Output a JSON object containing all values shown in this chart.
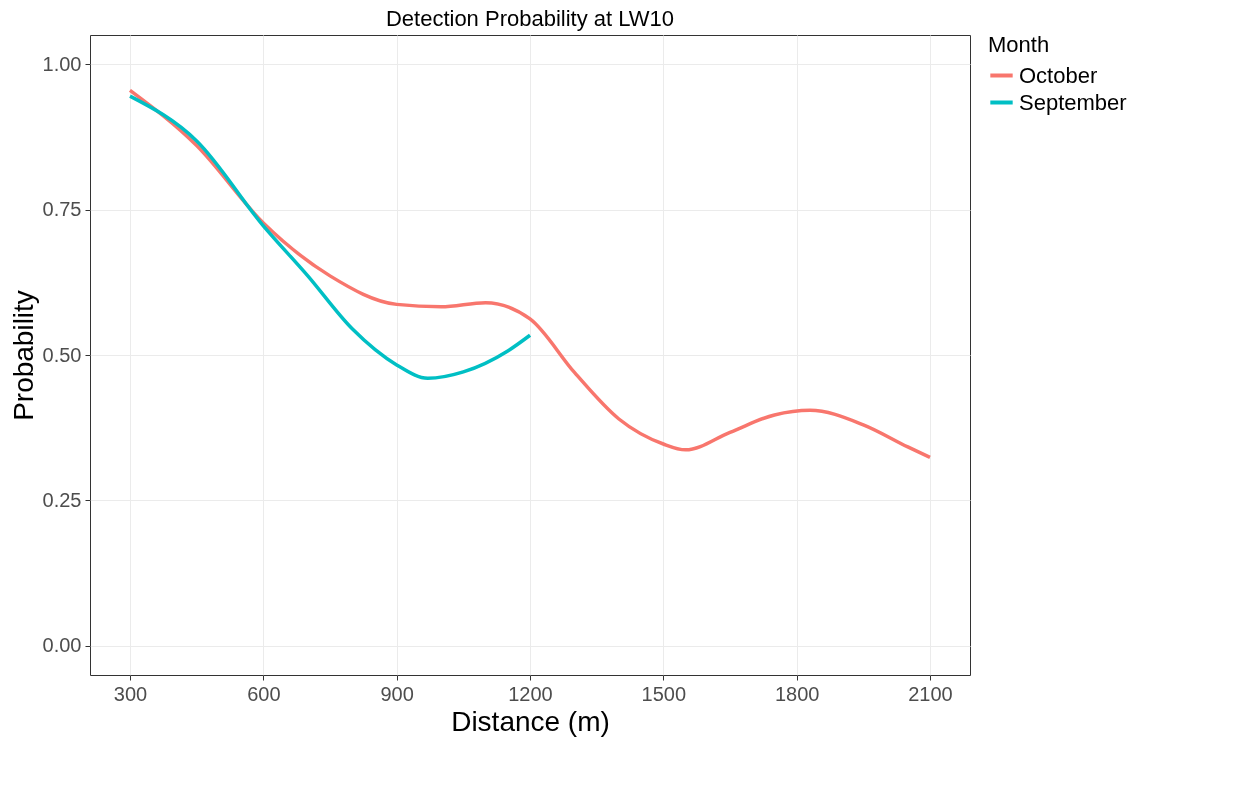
{
  "chart_data": {
    "type": "line",
    "title": "Detection Probability at LW10",
    "xlabel": "Distance (m)",
    "ylabel": "Probability",
    "legend_title": "Month",
    "xlim": [
      210,
      2190
    ],
    "xticks": [
      300,
      600,
      900,
      1200,
      1500,
      1800,
      2100
    ],
    "ylim": [
      -0.05,
      1.05
    ],
    "yticks": [
      {
        "value": 0,
        "label": "0.00"
      },
      {
        "value": 0.25,
        "label": "0.25"
      },
      {
        "value": 0.5,
        "label": "0.50"
      },
      {
        "value": 0.75,
        "label": "0.75"
      },
      {
        "value": 1,
        "label": "1.00"
      }
    ],
    "grid": true,
    "legend": "right",
    "marker": "none",
    "line_style": "solid",
    "series": [
      {
        "name": "October",
        "color": "#f8766d",
        "x": [
          300,
          450,
          600,
          750,
          900,
          1000,
          1100,
          1200,
          1300,
          1400,
          1500,
          1550,
          1650,
          1750,
          1830,
          1950,
          2050,
          2100
        ],
        "values": [
          0.955,
          0.86,
          0.727,
          0.636,
          0.587,
          0.583,
          0.59,
          0.562,
          0.47,
          0.39,
          0.347,
          0.337,
          0.367,
          0.397,
          0.405,
          0.38,
          0.342,
          0.324
        ]
      },
      {
        "name": "September",
        "color": "#00bfc4",
        "x": [
          300,
          450,
          600,
          700,
          800,
          900,
          970,
          1050,
          1150,
          1200
        ],
        "values": [
          0.945,
          0.868,
          0.722,
          0.636,
          0.545,
          0.483,
          0.46,
          0.471,
          0.507,
          0.534
        ]
      }
    ]
  }
}
